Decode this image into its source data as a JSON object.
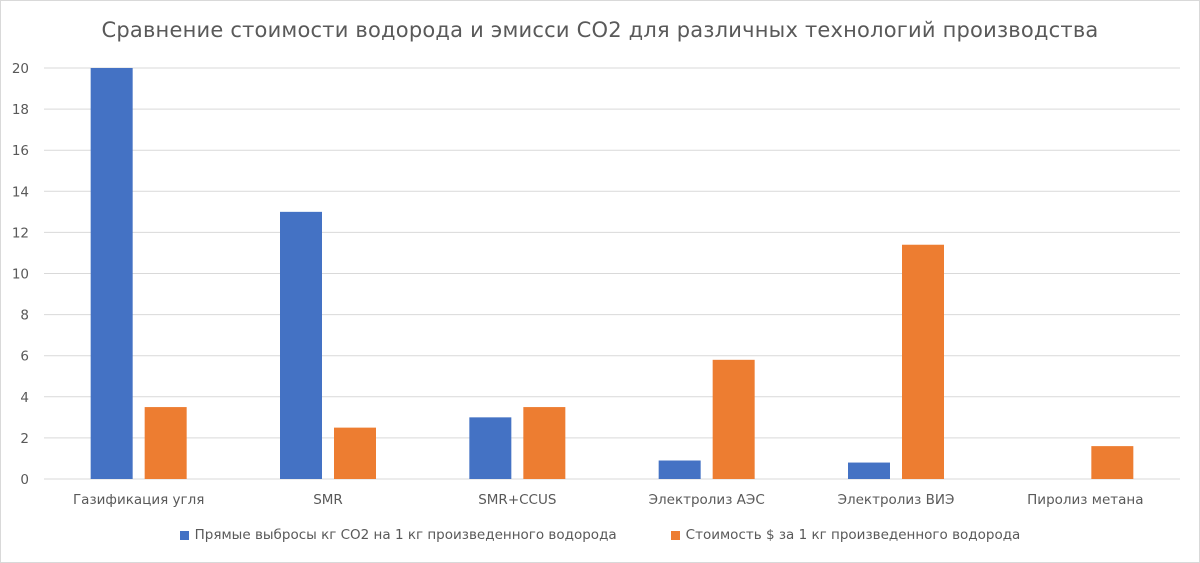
{
  "chart_data": {
    "type": "bar",
    "title": "Сравнение стоимости водорода и эмисси СО2 для различных технологий производства",
    "categories": [
      "Газификация угля",
      "SMR",
      "SMR+CCUS",
      "Электролиз АЭС",
      "Электролиз ВИЭ",
      "Пиролиз метана"
    ],
    "series": [
      {
        "name": "Прямые выбросы кг СО2 на 1 кг произведенного водорода",
        "color": "#4472C4",
        "values": [
          20,
          13,
          3,
          0.9,
          0.8,
          0
        ]
      },
      {
        "name": "Стоимость $ за 1 кг произведенного водорода",
        "color": "#ED7D31",
        "values": [
          3.5,
          2.5,
          3.5,
          5.8,
          11.4,
          1.6
        ]
      }
    ],
    "ylim": [
      0,
      20
    ],
    "yticks": [
      "0",
      "2",
      "4",
      "6",
      "8",
      "10",
      "12",
      "14",
      "16",
      "18",
      "20"
    ],
    "grid": true,
    "legend_position": "bottom",
    "xlabel": "",
    "ylabel": ""
  }
}
